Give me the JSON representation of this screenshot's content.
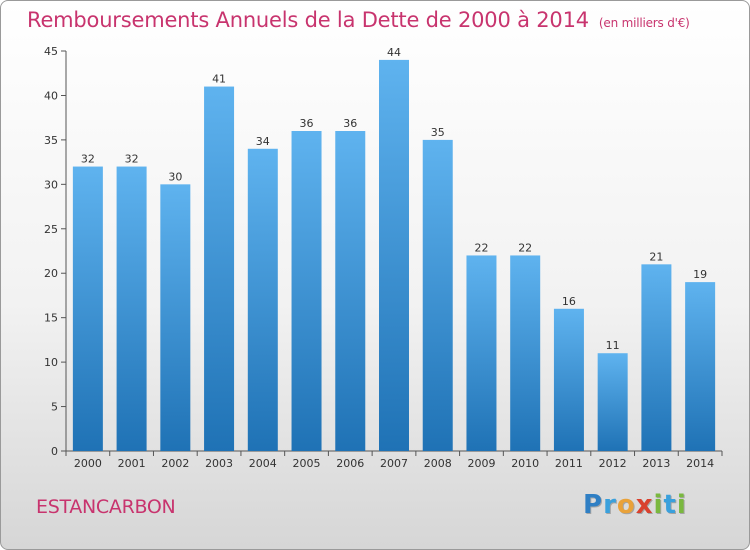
{
  "title": "Remboursements Annuels de la Dette de 2000 à 2014",
  "unit_note": "(en milliers d'€)",
  "commune": "ESTANCARBON",
  "logo": {
    "letters": [
      "P",
      "r",
      "o",
      "x",
      "i",
      "t",
      "i"
    ],
    "colors": [
      "#2f7fc4",
      "#3aa0dc",
      "#e9a23a",
      "#d9412e",
      "#7ab83f",
      "#3aa0dc",
      "#7ab83f"
    ]
  },
  "colors": {
    "bar_top": "#5fb3ef",
    "bar_bottom": "#1f72b5",
    "title": "#c8346e"
  },
  "chart_data": {
    "type": "bar",
    "categories": [
      "2000",
      "2001",
      "2002",
      "2003",
      "2004",
      "2005",
      "2006",
      "2007",
      "2008",
      "2009",
      "2010",
      "2011",
      "2012",
      "2013",
      "2014"
    ],
    "values": [
      32,
      32,
      30,
      41,
      34,
      36,
      36,
      44,
      35,
      22,
      22,
      16,
      11,
      21,
      19
    ],
    "ylim": [
      0,
      45
    ],
    "yticks": [
      0,
      5,
      10,
      15,
      20,
      25,
      30,
      35,
      40,
      45
    ],
    "grid": false
  }
}
